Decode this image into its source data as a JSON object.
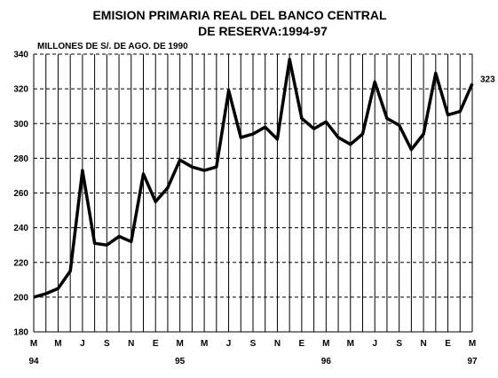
{
  "chart_data": {
    "type": "line",
    "title_line1": "EMISION PRIMARIA REAL DEL BANCO CENTRAL",
    "title_line2": "DE RESERVA:1994-97",
    "units_label": "MILLONES DE S/. DE AGO. DE 1990",
    "ylim": [
      180,
      340
    ],
    "yticks": [
      "180",
      "200",
      "220",
      "240",
      "260",
      "280",
      "300",
      "320",
      "340"
    ],
    "x_tick_labels": [
      "M",
      "M",
      "J",
      "S",
      "N",
      "E",
      "M",
      "M",
      "J",
      "S",
      "N",
      "E",
      "M",
      "M",
      "J",
      "S",
      "N",
      "E",
      "M"
    ],
    "year_labels": [
      {
        "label": "94",
        "index": 0
      },
      {
        "label": "95",
        "index": 6
      },
      {
        "label": "96",
        "index": 12
      },
      {
        "label": "97",
        "index": 18
      }
    ],
    "values": [
      200,
      202,
      205,
      215,
      273,
      231,
      230,
      235,
      232,
      271,
      255,
      263,
      279,
      275,
      273,
      275,
      319,
      292,
      294,
      298,
      291,
      337,
      303,
      297,
      301,
      292,
      288,
      294,
      324,
      303,
      299,
      285,
      294,
      329,
      305,
      307,
      323
    ],
    "end_label": "323",
    "grid": true,
    "line_color": "#000000",
    "grid_color": "#000000"
  }
}
